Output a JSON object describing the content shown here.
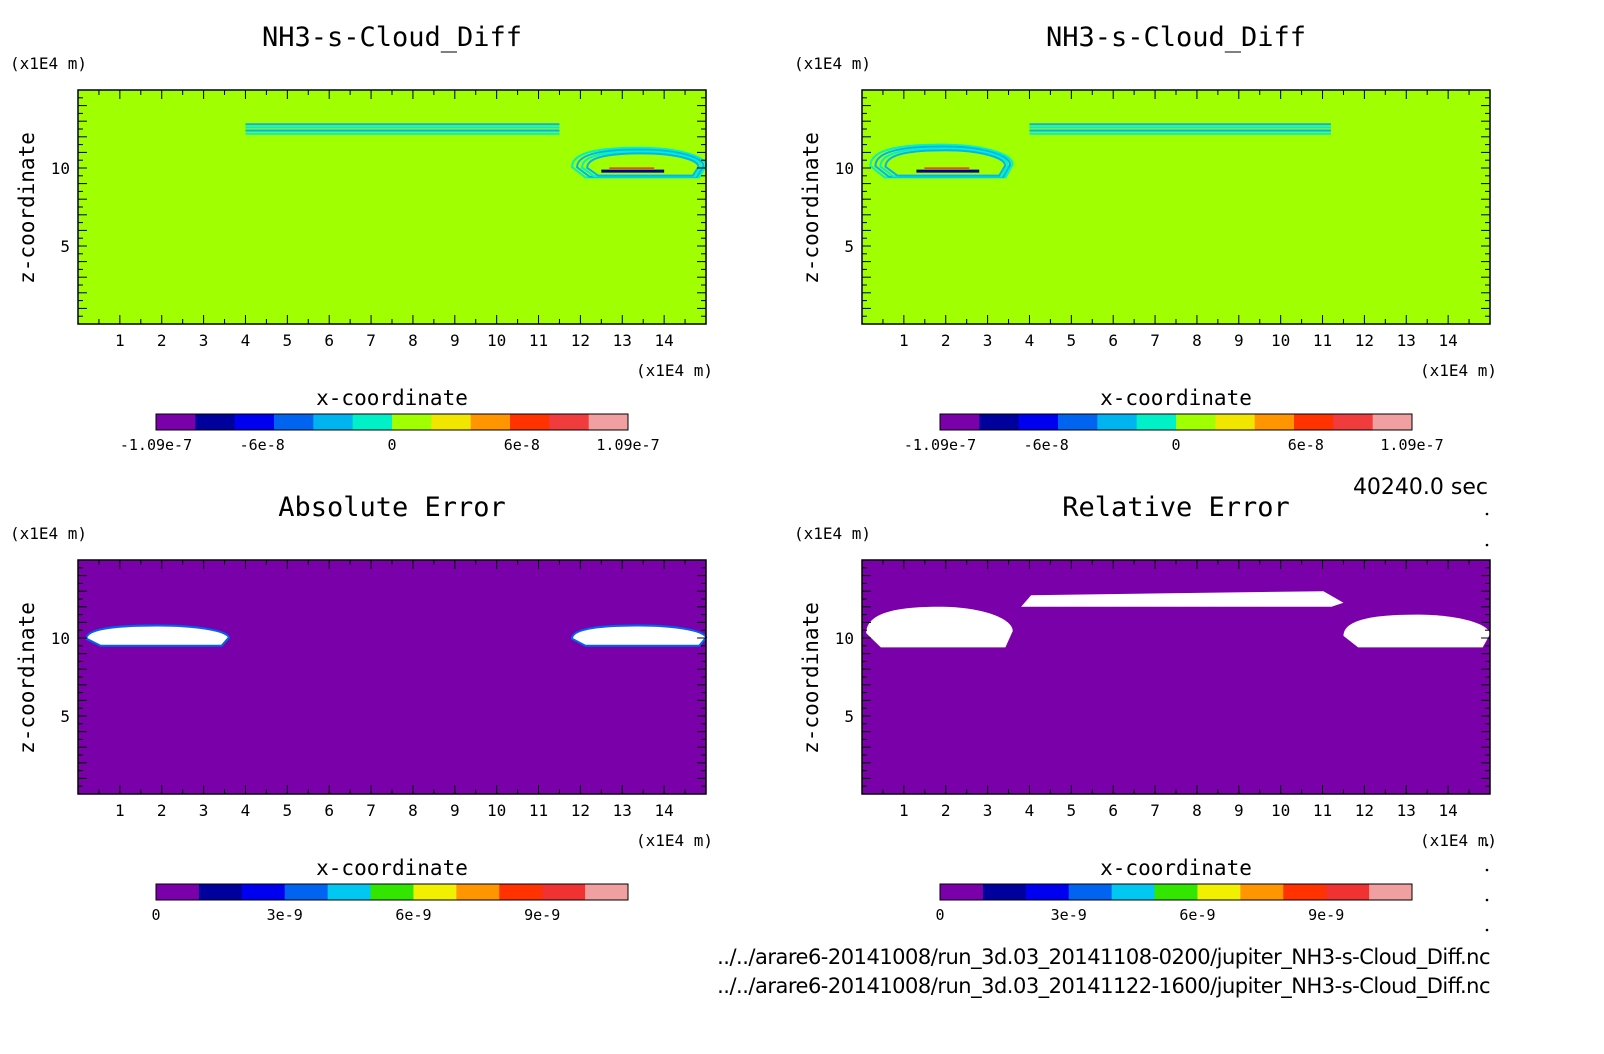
{
  "time_label": "40240.0 sec",
  "files": [
    "../../arare6-20141008/run_3d.03_20141108-0200/jupiter_NH3-s-Cloud_Diff.nc",
    "../../arare6-20141008/run_3d.03_20141122-1600/jupiter_NH3-s-Cloud_Diff.nc"
  ],
  "colors": {
    "diff_scale": [
      "#7a00aa",
      "#00009c",
      "#0000f0",
      "#0064f0",
      "#00b4f0",
      "#00f0c8",
      "#a0ff00",
      "#f0e600",
      "#ff9600",
      "#ff3200",
      "#f03c3c",
      "#f0a0a0"
    ],
    "error_scale": [
      "#7a00aa",
      "#00009c",
      "#0000f0",
      "#0064f0",
      "#00c8f0",
      "#32e600",
      "#f0f000",
      "#ff9600",
      "#ff3200",
      "#f03232",
      "#f0a0a0"
    ]
  },
  "chart_data": [
    {
      "type": "heatmap",
      "title": "NH3-s-Cloud_Diff",
      "xlabel": "x-coordinate",
      "ylabel": "z-coordinate",
      "x_unit": "(x1E4 m)",
      "y_unit": "(x1E4 m)",
      "xlim": [
        0,
        15
      ],
      "ylim": [
        0,
        15
      ],
      "x_ticks": [
        "1",
        "2",
        "3",
        "4",
        "5",
        "6",
        "7",
        "8",
        "9",
        "10",
        "11",
        "12",
        "13",
        "14"
      ],
      "y_ticks": [
        "5",
        "10"
      ],
      "background": "#a0ff00",
      "colorbar_ticks": [
        "-1.09e-7",
        "-6e-8",
        "0",
        "6e-8",
        "1.09e-7"
      ],
      "features": [
        {
          "kind": "cloud-band",
          "x": [
            4,
            11.5
          ],
          "z": [
            12.2,
            12.8
          ],
          "color": "#00f0c8"
        },
        {
          "kind": "cloud-blob",
          "x": [
            11.8,
            15
          ],
          "z": [
            9.4,
            11.3
          ],
          "color": "#00f0c8"
        },
        {
          "kind": "core",
          "x": [
            12.5,
            14
          ],
          "z": [
            9.6,
            10
          ],
          "color": "#00009c"
        }
      ]
    },
    {
      "type": "heatmap",
      "title": "NH3-s-Cloud_Diff",
      "xlabel": "x-coordinate",
      "ylabel": "z-coordinate",
      "x_unit": "(x1E4 m)",
      "y_unit": "(x1E4 m)",
      "xlim": [
        0,
        15
      ],
      "ylim": [
        0,
        15
      ],
      "x_ticks": [
        "1",
        "2",
        "3",
        "4",
        "5",
        "6",
        "7",
        "8",
        "9",
        "10",
        "11",
        "12",
        "13",
        "14"
      ],
      "y_ticks": [
        "5",
        "10"
      ],
      "background": "#a0ff00",
      "colorbar_ticks": [
        "-1.09e-7",
        "-6e-8",
        "0",
        "6e-8",
        "1.09e-7"
      ],
      "features": [
        {
          "kind": "cloud-band",
          "x": [
            4,
            11.2
          ],
          "z": [
            12.2,
            12.8
          ],
          "color": "#00f0c8"
        },
        {
          "kind": "cloud-blob",
          "x": [
            0.2,
            3.6
          ],
          "z": [
            9.4,
            11.5
          ],
          "color": "#00f0c8"
        },
        {
          "kind": "core",
          "x": [
            1.3,
            2.8
          ],
          "z": [
            9.6,
            10
          ],
          "color": "#00009c"
        }
      ]
    },
    {
      "type": "heatmap",
      "title": "Absolute Error",
      "xlabel": "x-coordinate",
      "ylabel": "z-coordinate",
      "x_unit": "(x1E4 m)",
      "y_unit": "(x1E4 m)",
      "xlim": [
        0,
        15
      ],
      "ylim": [
        0,
        15
      ],
      "x_ticks": [
        "1",
        "2",
        "3",
        "4",
        "5",
        "6",
        "7",
        "8",
        "9",
        "10",
        "11",
        "12",
        "13",
        "14"
      ],
      "y_ticks": [
        "5",
        "10"
      ],
      "background": "#7a00aa",
      "colorbar_ticks": [
        "0",
        "3e-9",
        "6e-9",
        "9e-9"
      ],
      "features": [
        {
          "kind": "error-blob",
          "x": [
            0.2,
            3.6
          ],
          "z": [
            9.5,
            10.8
          ],
          "color": "#ffffff"
        },
        {
          "kind": "error-blob",
          "x": [
            11.8,
            15
          ],
          "z": [
            9.5,
            10.8
          ],
          "color": "#ffffff"
        }
      ]
    },
    {
      "type": "heatmap",
      "title": "Relative Error",
      "xlabel": "x-coordinate",
      "ylabel": "z-coordinate",
      "x_unit": "(x1E4 m)",
      "y_unit": "(x1E4 m)",
      "xlim": [
        0,
        15
      ],
      "ylim": [
        0,
        15
      ],
      "x_ticks": [
        "1",
        "2",
        "3",
        "4",
        "5",
        "6",
        "7",
        "8",
        "9",
        "10",
        "11",
        "12",
        "13",
        "14"
      ],
      "y_ticks": [
        "5",
        "10"
      ],
      "background": "#7a00aa",
      "colorbar_ticks": [
        "0",
        "3e-9",
        "6e-9",
        "9e-9"
      ],
      "features": [
        {
          "kind": "error-blob",
          "x": [
            0.1,
            3.6
          ],
          "z": [
            9.4,
            12
          ],
          "color": "#ffffff"
        },
        {
          "kind": "error-band",
          "x": [
            3.8,
            11.5
          ],
          "z": [
            12,
            13
          ],
          "color": "#ffffff"
        },
        {
          "kind": "error-blob",
          "x": [
            11.5,
            15
          ],
          "z": [
            9.4,
            11.5
          ],
          "color": "#ffffff"
        }
      ]
    }
  ]
}
